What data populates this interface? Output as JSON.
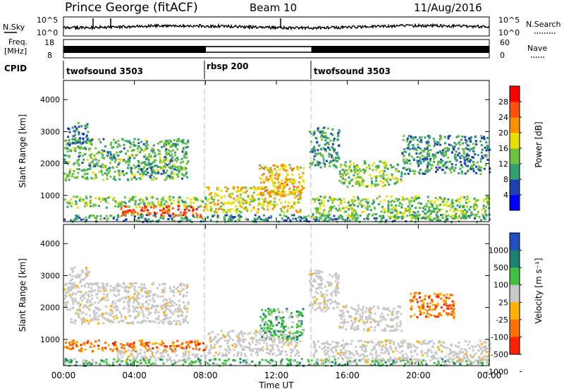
{
  "header": {
    "station": "Prince George (fitACF)",
    "beam": "Beam 10",
    "date": "11/Aug/2016"
  },
  "top_panels": {
    "nsky_label": "N.Sky",
    "nsky_ticks": [
      "10^5",
      "10^0"
    ],
    "nsearch_label": "N.Search",
    "nsearch_ticks": [
      "10^5",
      "10^0"
    ],
    "freq_label": "Freq.",
    "freq_unit": "[MHz]",
    "freq_ticks": [
      "18",
      "8"
    ],
    "nave_label": "Nave",
    "nave_ticks": [
      "60",
      "0"
    ],
    "cpid_label": "CPID",
    "cpid_segments": [
      {
        "name": "twofsound 3503",
        "start_h": 0,
        "end_h": 8
      },
      {
        "name": "rbsp 200",
        "start_h": 8,
        "end_h": 14
      },
      {
        "name": "twofsound 3503",
        "start_h": 14,
        "end_h": 24
      }
    ]
  },
  "chart_data": [
    {
      "type": "heatmap",
      "panel": "power",
      "xlabel": "",
      "ylabel": "Slant Range [km]",
      "xlim": [
        0,
        24
      ],
      "ylim": [
        180,
        4600
      ],
      "y_ticks": [
        "1000",
        "2000",
        "3000",
        "4000"
      ],
      "colorbar_label": "Power [dB]",
      "colorbar_ticks": [
        "4",
        "8",
        "12",
        "16",
        "20",
        "24",
        "28"
      ],
      "colorscale": [
        "#0000ff",
        "#2040b0",
        "#30a070",
        "#70c040",
        "#e8e000",
        "#ff9000",
        "#ff5010",
        "#ff0000"
      ],
      "regions": [
        {
          "t0": 0.2,
          "t1": 1.4,
          "r0": 2600,
          "r1": 3300,
          "power_db": 8
        },
        {
          "t0": 0,
          "t1": 7,
          "r0": 1500,
          "r1": 2800,
          "power_db": 12
        },
        {
          "t0": 0,
          "t1": 8,
          "r0": 650,
          "r1": 1000,
          "power_db": 14
        },
        {
          "t0": 3,
          "t1": 8,
          "r0": 350,
          "r1": 700,
          "power_db": 26
        },
        {
          "t0": 0,
          "t1": 24,
          "r0": 200,
          "r1": 420,
          "power_db": 10
        },
        {
          "t0": 8,
          "t1": 13.3,
          "r0": 500,
          "r1": 1300,
          "power_db": 18
        },
        {
          "t0": 11,
          "t1": 13.5,
          "r0": 1000,
          "r1": 2000,
          "power_db": 20
        },
        {
          "t0": 13.8,
          "t1": 15.5,
          "r0": 1900,
          "r1": 3200,
          "power_db": 10
        },
        {
          "t0": 15.5,
          "t1": 19,
          "r0": 1300,
          "r1": 2100,
          "power_db": 14
        },
        {
          "t0": 19,
          "t1": 24,
          "r0": 1700,
          "r1": 2900,
          "power_db": 10
        },
        {
          "t0": 14,
          "t1": 24,
          "r0": 300,
          "r1": 1000,
          "power_db": 14
        }
      ]
    },
    {
      "type": "heatmap",
      "panel": "velocity",
      "xlabel": "Time UT",
      "ylabel": "Slant Range [km]",
      "xlim": [
        0,
        24
      ],
      "ylim": [
        180,
        4600
      ],
      "x_ticks": [
        "00:00",
        "04:00",
        "08:00",
        "12:00",
        "16:00",
        "20:00",
        "00:00"
      ],
      "y_ticks": [
        "1000",
        "2000",
        "3000",
        "4000"
      ],
      "colorbar_label": "Velocity [m s⁻¹]",
      "colorbar_ticks": [
        "1000",
        "500",
        "100",
        "25",
        "-25",
        "-100",
        "-500",
        "-1000"
      ],
      "colorscale": [
        "#2050c0",
        "#208070",
        "#40c040",
        "#c8c8c8",
        "#ffb000",
        "#ff7000",
        "#ff2000"
      ],
      "regions": [
        {
          "t0": 0.2,
          "t1": 1.4,
          "r0": 2600,
          "r1": 3300,
          "class": "ground"
        },
        {
          "t0": 0,
          "t1": 7,
          "r0": 1500,
          "r1": 2800,
          "class": "ground"
        },
        {
          "t0": 0,
          "t1": 8,
          "r0": 650,
          "r1": 1000,
          "class": "negative"
        },
        {
          "t0": 3,
          "t1": 8,
          "r0": 350,
          "r1": 700,
          "class": "ground"
        },
        {
          "t0": 0,
          "t1": 24,
          "r0": 200,
          "r1": 420,
          "class": "positive"
        },
        {
          "t0": 8,
          "t1": 13.3,
          "r0": 500,
          "r1": 1300,
          "class": "ground"
        },
        {
          "t0": 11,
          "t1": 13.5,
          "r0": 1000,
          "r1": 2000,
          "class": "positive"
        },
        {
          "t0": 13.8,
          "t1": 15.5,
          "r0": 1900,
          "r1": 3200,
          "class": "ground"
        },
        {
          "t0": 15.5,
          "t1": 19,
          "r0": 1300,
          "r1": 2100,
          "class": "ground"
        },
        {
          "t0": 19.5,
          "t1": 22,
          "r0": 1700,
          "r1": 2500,
          "class": "negative"
        },
        {
          "t0": 14,
          "t1": 24,
          "r0": 300,
          "r1": 1000,
          "class": "ground"
        }
      ]
    }
  ]
}
